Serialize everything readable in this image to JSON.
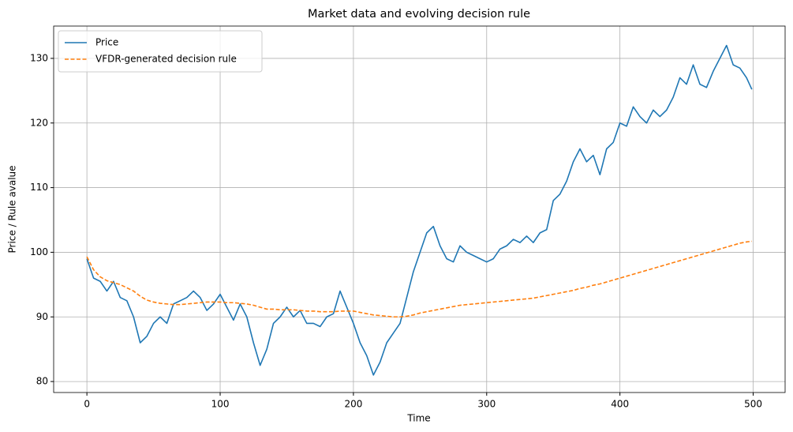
{
  "chart_data": {
    "type": "line",
    "title": "Market data and evolving decision rule",
    "x_label": "Time",
    "y_label": "Price / Rule avalue",
    "x": [
      0,
      5,
      10,
      15,
      20,
      25,
      30,
      35,
      40,
      45,
      50,
      55,
      60,
      65,
      70,
      75,
      80,
      85,
      90,
      95,
      100,
      105,
      110,
      115,
      120,
      125,
      130,
      135,
      140,
      145,
      150,
      155,
      160,
      165,
      170,
      175,
      180,
      185,
      190,
      195,
      200,
      205,
      210,
      215,
      220,
      225,
      230,
      235,
      240,
      245,
      250,
      255,
      260,
      265,
      270,
      275,
      280,
      285,
      290,
      295,
      300,
      305,
      310,
      315,
      320,
      325,
      330,
      335,
      340,
      345,
      350,
      355,
      360,
      365,
      370,
      375,
      380,
      385,
      390,
      395,
      400,
      405,
      410,
      415,
      420,
      425,
      430,
      435,
      440,
      445,
      450,
      455,
      460,
      465,
      470,
      475,
      480,
      485,
      490,
      495,
      499
    ],
    "series": [
      {
        "name": "Price",
        "color": "#1f77b4",
        "linestyle": "solid",
        "values": [
          99,
          96,
          95.5,
          94,
          95.5,
          93,
          92.5,
          90,
          86,
          87,
          89,
          90,
          89,
          92,
          92.5,
          93,
          94,
          93,
          91,
          92,
          93.5,
          91.5,
          89.5,
          92,
          90,
          86,
          82.5,
          85,
          89,
          90,
          91.5,
          90,
          91,
          89,
          89,
          88.5,
          90,
          90.5,
          94,
          91.5,
          89,
          86,
          84,
          81,
          83,
          86,
          87.5,
          89,
          93,
          97,
          100,
          103,
          104,
          101,
          99,
          98.5,
          101,
          100,
          99.5,
          99,
          98.5,
          99,
          100.5,
          101,
          102,
          101.5,
          102.5,
          101.5,
          103,
          103.5,
          108,
          109,
          111,
          114,
          116,
          114,
          115,
          112,
          116,
          117,
          120,
          119.5,
          122.5,
          121,
          120,
          122,
          121,
          122,
          124,
          127,
          126,
          129,
          126,
          125.5,
          128,
          130,
          132,
          129,
          128.5,
          127,
          125.2
        ]
      },
      {
        "name": "VFDR-generated decision rule",
        "color": "#ff7f0e",
        "linestyle": "dashed",
        "values": [
          99.3,
          97.3,
          96.2,
          95.6,
          95.3,
          95,
          94.5,
          94,
          93.2,
          92.6,
          92.3,
          92.1,
          92,
          91.9,
          91.9,
          92,
          92.1,
          92.2,
          92.3,
          92.3,
          92.3,
          92.2,
          92.2,
          92.1,
          92,
          91.8,
          91.5,
          91.2,
          91.2,
          91.1,
          91.1,
          91.1,
          91,
          90.9,
          90.9,
          90.8,
          90.8,
          90.8,
          90.9,
          90.9,
          90.9,
          90.7,
          90.5,
          90.3,
          90.2,
          90.1,
          90,
          90,
          90.1,
          90.3,
          90.6,
          90.8,
          91,
          91.2,
          91.4,
          91.6,
          91.8,
          91.9,
          92,
          92.1,
          92.2,
          92.3,
          92.4,
          92.5,
          92.6,
          92.7,
          92.8,
          92.9,
          93.1,
          93.3,
          93.5,
          93.7,
          93.9,
          94.1,
          94.4,
          94.6,
          94.9,
          95.1,
          95.4,
          95.7,
          96,
          96.3,
          96.6,
          96.9,
          97.2,
          97.5,
          97.8,
          98.1,
          98.4,
          98.7,
          99,
          99.3,
          99.6,
          99.9,
          100.2,
          100.5,
          100.8,
          101.1,
          101.4,
          101.6,
          101.7
        ]
      }
    ],
    "xlim": [
      -24.95,
      523.95
    ],
    "xticks": [
      0,
      100,
      200,
      300,
      400,
      500
    ],
    "ylim": [
      78.3,
      135
    ],
    "yticks": [
      80,
      90,
      100,
      110,
      120,
      130
    ],
    "grid": true,
    "legend": "upper-left"
  }
}
